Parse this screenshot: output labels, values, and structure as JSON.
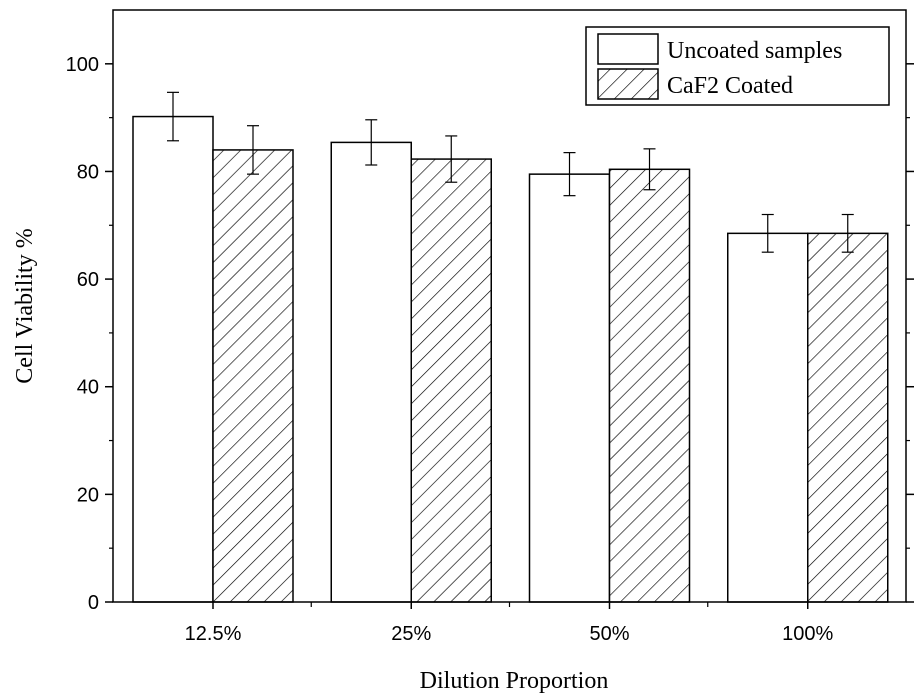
{
  "chart_data": {
    "type": "bar",
    "title": "",
    "xlabel": "Dilution Proportion",
    "ylabel": "Cell Viability %",
    "categories": [
      "12.5%",
      "25%",
      "50%",
      "100%"
    ],
    "series": [
      {
        "name": "Uncoated samples",
        "fill": "plain",
        "values": [
          90.2,
          85.4,
          79.5,
          68.5
        ],
        "errors": [
          4.5,
          4.2,
          4.0,
          3.5
        ]
      },
      {
        "name": "CaF2 Coated",
        "fill": "hatched",
        "values": [
          84.0,
          82.3,
          80.4,
          68.5
        ],
        "errors": [
          4.5,
          4.3,
          3.8,
          3.5
        ]
      }
    ],
    "ylim": [
      0,
      110
    ],
    "yticks": [
      0,
      20,
      40,
      60,
      80,
      100
    ],
    "ytick_labels": [
      "0",
      "20",
      "40",
      "60",
      "80",
      "100"
    ],
    "grid": false,
    "legend_position": "top-right",
    "colors": {
      "bar_fill": "#ffffff",
      "stroke": "#000000"
    }
  }
}
